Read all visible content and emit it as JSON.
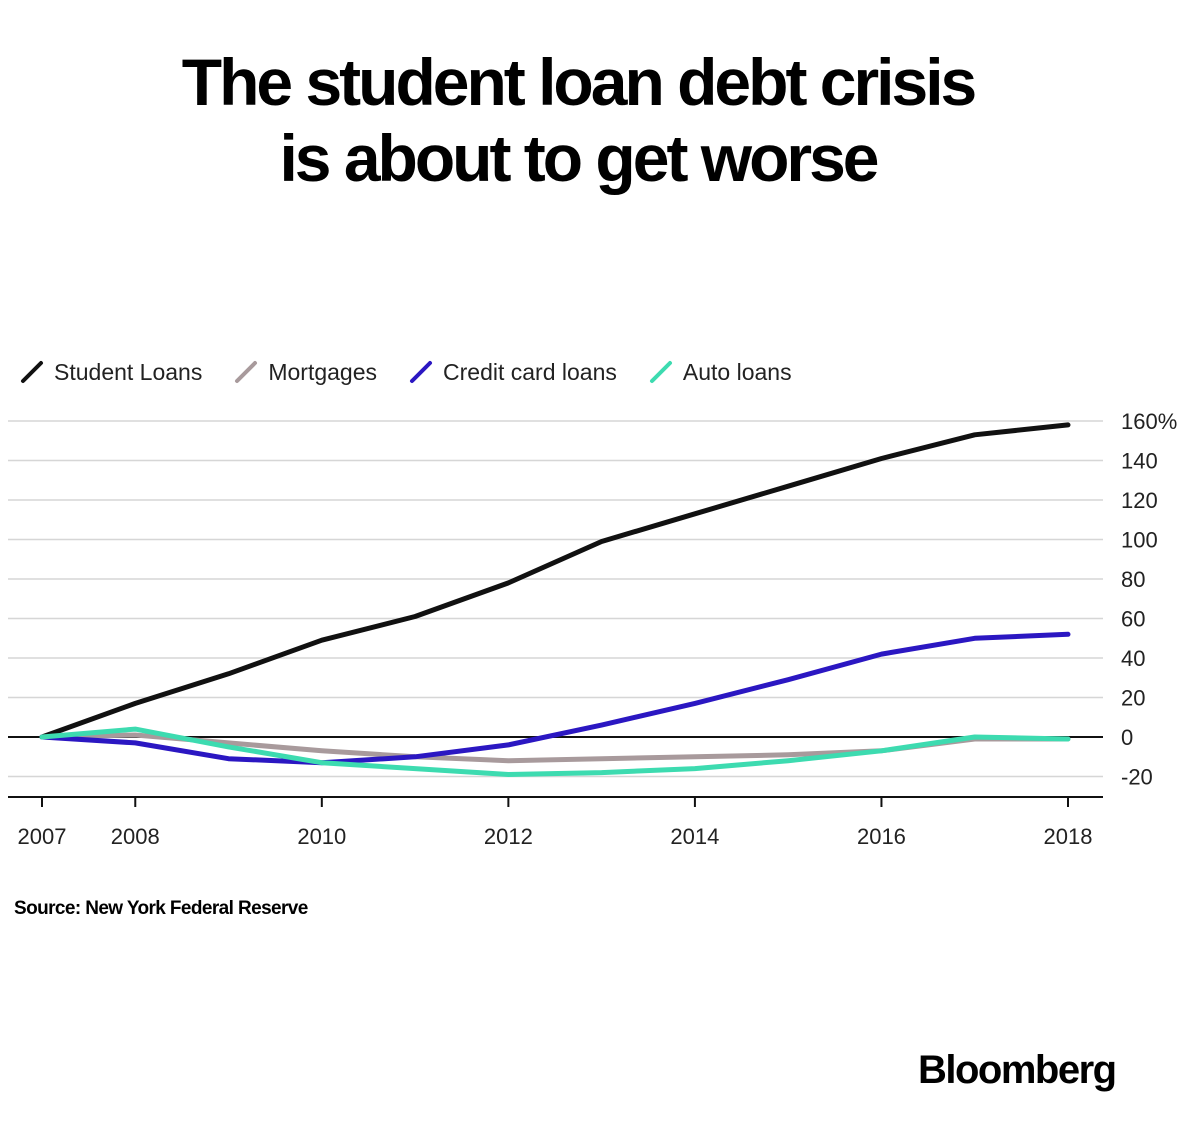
{
  "title_lines": [
    "The student loan debt crisis",
    "is about to get worse"
  ],
  "source": "Source: New York Federal Reserve",
  "brand": "Bloomberg",
  "chart_data": {
    "type": "line",
    "title": "The student loan debt crisis is about to get worse",
    "x": [
      2007,
      2008,
      2009,
      2010,
      2011,
      2012,
      2013,
      2014,
      2015,
      2016,
      2017,
      2018
    ],
    "x_ticks": [
      2007,
      2008,
      2010,
      2012,
      2014,
      2016,
      2018
    ],
    "x_tick_labels": [
      "2007",
      "2008",
      "2010",
      "2012",
      "2014",
      "2016",
      "2018"
    ],
    "y_ticks": [
      -20,
      0,
      20,
      40,
      60,
      80,
      100,
      120,
      140,
      160
    ],
    "y_tick_labels": [
      "-20",
      "0",
      "20",
      "40",
      "60",
      "80",
      "100",
      "120",
      "140",
      "160%"
    ],
    "ylim": [
      -30,
      160
    ],
    "xlim": [
      2007,
      2018
    ],
    "grid": true,
    "legend_position": "top-left",
    "series": [
      {
        "name": "Student Loans",
        "color": "#111111",
        "values": [
          0,
          17,
          32,
          49,
          61,
          78,
          99,
          113,
          127,
          141,
          153,
          158
        ]
      },
      {
        "name": "Mortgages",
        "color": "#a89a9c",
        "values": [
          0,
          1,
          -3,
          -7,
          -10,
          -12,
          -11,
          -10,
          -9,
          -7,
          -1,
          -1
        ]
      },
      {
        "name": "Credit card loans",
        "color": "#2b17c2",
        "values": [
          0,
          -3,
          -11,
          -13,
          -10,
          -4,
          6,
          17,
          29,
          42,
          50,
          52
        ]
      },
      {
        "name": "Auto loans",
        "color": "#3ddbb0",
        "values": [
          0,
          4,
          -5,
          -13,
          -16,
          -19,
          -18,
          -16,
          -12,
          -7,
          0,
          -1
        ]
      }
    ]
  }
}
